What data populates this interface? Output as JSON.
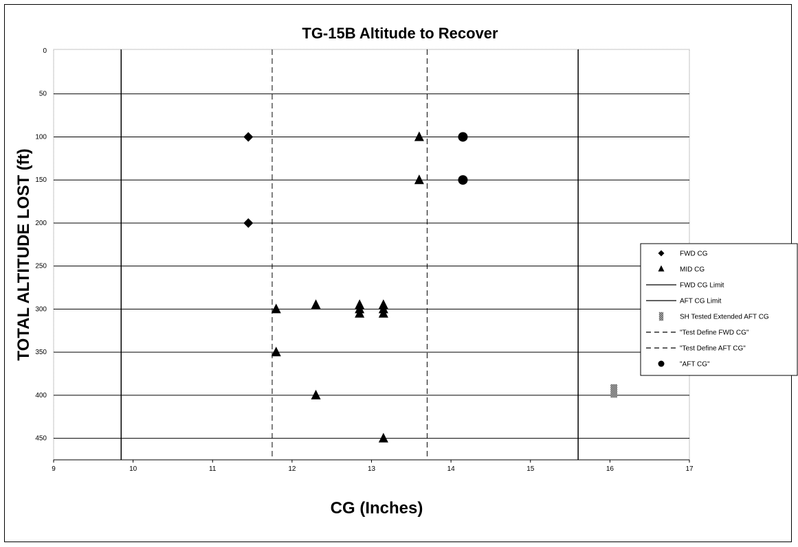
{
  "chart_data": {
    "type": "scatter",
    "title": "TG-15B Altitude to Recover",
    "xlabel": "CG (Inches)",
    "ylabel": "TOTAL ALTITUDE LOST (ft)",
    "xlim": [
      9,
      17
    ],
    "ylim": [
      0,
      475
    ],
    "y_axis_inverted": true,
    "x_ticks": [
      9,
      10,
      11,
      12,
      13,
      14,
      15,
      16,
      17
    ],
    "y_ticks": [
      0,
      50,
      100,
      150,
      200,
      250,
      300,
      350,
      400,
      450
    ],
    "grid": "horizontal",
    "legend_position": "right",
    "series": [
      {
        "name": "FWD CG",
        "marker": "diamond",
        "color": "#000000",
        "points": [
          [
            11.45,
            100
          ],
          [
            11.45,
            200
          ]
        ]
      },
      {
        "name": "MID CG",
        "marker": "triangle",
        "color": "#000000",
        "points": [
          [
            11.8,
            300
          ],
          [
            11.8,
            350
          ],
          [
            12.3,
            295
          ],
          [
            12.3,
            400
          ],
          [
            12.85,
            295
          ],
          [
            12.85,
            300
          ],
          [
            12.85,
            305
          ],
          [
            13.15,
            295
          ],
          [
            13.15,
            300
          ],
          [
            13.15,
            305
          ],
          [
            13.15,
            450
          ],
          [
            13.6,
            100
          ],
          [
            13.6,
            150
          ]
        ]
      },
      {
        "name": "FWD CG Limit",
        "marker": "vline",
        "line_style": "solid",
        "color": "#000000",
        "x": 9.85
      },
      {
        "name": "AFT CG Limit",
        "marker": "vline",
        "line_style": "solid",
        "color": "#000000",
        "x": 15.6
      },
      {
        "name": "SH Tested Extended AFT CG",
        "marker": "hatched-square",
        "color": "#888888",
        "points": [
          [
            16.05,
            395
          ]
        ]
      },
      {
        "name": "\"Test Define FWD CG\"",
        "marker": "vline",
        "line_style": "dashed",
        "color": "#000000",
        "x": 11.75
      },
      {
        "name": "\"Test Define AFT CG\"",
        "marker": "vline",
        "line_style": "dashed",
        "color": "#000000",
        "x": 13.7
      },
      {
        "name": "\"AFT CG\"",
        "marker": "circle",
        "color": "#000000",
        "points": [
          [
            14.15,
            100
          ],
          [
            14.15,
            150
          ]
        ]
      }
    ]
  }
}
